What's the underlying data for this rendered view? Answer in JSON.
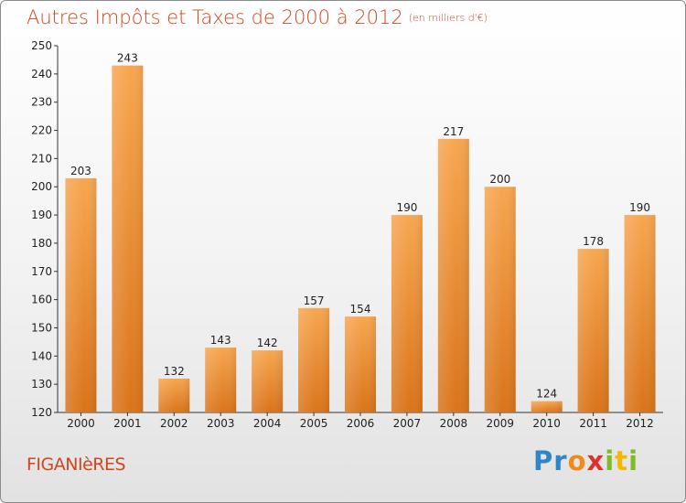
{
  "title": "Autres Impôts et Taxes de 2000 à 2012",
  "unit": "(en milliers d'€)",
  "commune": "FIGANIèRES",
  "logo": {
    "letters": [
      "P",
      "r",
      "o",
      "x",
      "i",
      "t",
      "i"
    ],
    "colors": [
      "#2e86c8",
      "#2e86c8",
      "#f08a1a",
      "#e0322d",
      "#7dbb27",
      "#f5b800",
      "#7dbb27"
    ]
  },
  "colors": {
    "bar_top": "#f7a650",
    "bar_bottom": "#d9741a",
    "title": "#d0461e"
  },
  "chart_data": {
    "type": "bar",
    "title": "Autres Impôts et Taxes de 2000 à 2012",
    "xlabel": "",
    "ylabel": "",
    "categories": [
      "2000",
      "2001",
      "2002",
      "2003",
      "2004",
      "2005",
      "2006",
      "2007",
      "2008",
      "2009",
      "2010",
      "2011",
      "2012"
    ],
    "values": [
      203,
      243,
      132,
      143,
      142,
      157,
      154,
      190,
      217,
      200,
      124,
      178,
      190
    ],
    "ylim": [
      120,
      250
    ],
    "yticks": [
      120,
      130,
      140,
      150,
      160,
      170,
      180,
      190,
      200,
      210,
      220,
      230,
      240,
      250
    ],
    "grid": false,
    "legend": "none"
  }
}
